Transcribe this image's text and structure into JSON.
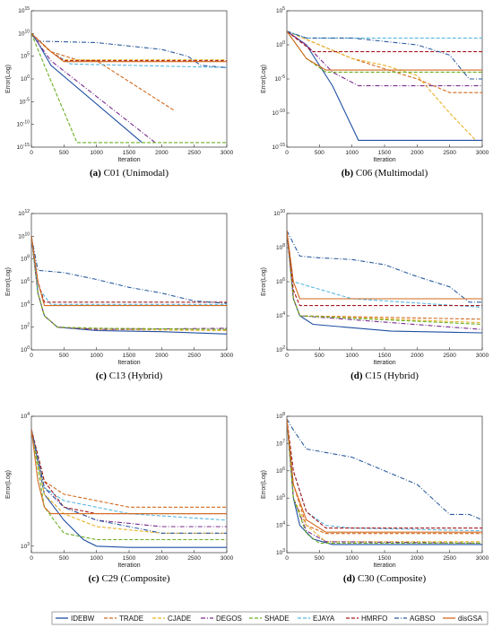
{
  "legend": [
    {
      "name": "IDEBW",
      "color": "#1f4fa3",
      "dash": "solid"
    },
    {
      "name": "TRADE",
      "color": "#d2691e",
      "dash": "dash"
    },
    {
      "name": "CJADE",
      "color": "#e8b32a",
      "dash": "dash"
    },
    {
      "name": "DEGOS",
      "color": "#7b2d8e",
      "dash": "dashdot"
    },
    {
      "name": "SHADE",
      "color": "#6ab023",
      "dash": "dash"
    },
    {
      "name": "EJAYA",
      "color": "#59b8e0",
      "dash": "dash"
    },
    {
      "name": "HMRFO",
      "color": "#a8191e",
      "dash": "dash"
    },
    {
      "name": "AGBSO",
      "color": "#2c5c9e",
      "dash": "dashdot"
    },
    {
      "name": "disGSA",
      "color": "#d26a1e",
      "dash": "solid"
    }
  ],
  "chart_data": [
    {
      "type": "line",
      "panel": "a",
      "caption_tag": "(a)",
      "caption_text": " C01 (Unimodal)",
      "xlabel": "Iteration",
      "ylabel": "Error(Log)",
      "xlim": [
        0,
        3000
      ],
      "xticks": [
        "0",
        "500",
        "1000",
        "1500",
        "2000",
        "2500",
        "3000"
      ],
      "log": true,
      "ylim_exp": [
        -15,
        15
      ],
      "yticks_exp": [
        -15,
        -10,
        -5,
        0,
        5,
        10,
        15
      ],
      "series": [
        {
          "name": "IDEBW",
          "x": [
            0,
            100,
            300,
            1700
          ],
          "y": [
            10,
            8,
            3,
            -14
          ]
        },
        {
          "name": "TRADE",
          "x": [
            0,
            300,
            700,
            1000,
            2200
          ],
          "y": [
            10,
            6,
            4.2,
            4,
            -7
          ]
        },
        {
          "name": "CJADE",
          "x": [
            0,
            250,
            500,
            3000
          ],
          "y": [
            10,
            6.5,
            4.2,
            4.2
          ]
        },
        {
          "name": "DEGOS",
          "x": [
            0,
            100,
            300,
            1900
          ],
          "y": [
            10,
            8,
            4,
            -14
          ]
        },
        {
          "name": "SHADE",
          "x": [
            0,
            200,
            700,
            750,
            3000
          ],
          "y": [
            10,
            3,
            -14,
            -14,
            -14
          ]
        },
        {
          "name": "EJAYA",
          "x": [
            0,
            300,
            600,
            3000
          ],
          "y": [
            10,
            6,
            3.3,
            2.5
          ]
        },
        {
          "name": "HMRFO",
          "x": [
            0,
            300,
            500,
            3000
          ],
          "y": [
            10,
            6,
            4,
            4
          ]
        },
        {
          "name": "AGBSO",
          "x": [
            0,
            100,
            1000,
            2000,
            2400,
            2600,
            3000
          ],
          "y": [
            10,
            8.3,
            8,
            6.5,
            5,
            3,
            2.5
          ]
        },
        {
          "name": "disGSA",
          "x": [
            0,
            300,
            500,
            3000
          ],
          "y": [
            10,
            6,
            3.8,
            3.8
          ]
        }
      ]
    },
    {
      "type": "line",
      "panel": "b",
      "caption_tag": "(b)",
      "caption_text": " C06 (Multimodal)",
      "xlabel": "Iteration",
      "ylabel": "Error(Log)",
      "xlim": [
        0,
        3000
      ],
      "xticks": [
        "0",
        "500",
        "1000",
        "1500",
        "2000",
        "2500",
        "3000"
      ],
      "log": true,
      "ylim_exp": [
        -15,
        5
      ],
      "yticks_exp": [
        -15,
        -10,
        -5,
        0,
        5
      ],
      "series": [
        {
          "name": "IDEBW",
          "x": [
            0,
            300,
            700,
            1100,
            3000
          ],
          "y": [
            2,
            0,
            -6,
            -14,
            -14
          ]
        },
        {
          "name": "TRADE",
          "x": [
            0,
            500,
            1000,
            1500,
            2000,
            2500,
            3000
          ],
          "y": [
            2,
            0,
            -2,
            -3.5,
            -5,
            -7,
            -7
          ]
        },
        {
          "name": "CJADE",
          "x": [
            0,
            500,
            1000,
            1500,
            2000,
            2500,
            2900
          ],
          "y": [
            2,
            0,
            -2,
            -3,
            -4.5,
            -10,
            -14
          ]
        },
        {
          "name": "DEGOS",
          "x": [
            0,
            300,
            700,
            1100,
            3000
          ],
          "y": [
            2,
            0,
            -4,
            -6,
            -6
          ]
        },
        {
          "name": "SHADE",
          "x": [
            0,
            300,
            600,
            3000
          ],
          "y": [
            2,
            -2,
            -4,
            -4
          ]
        },
        {
          "name": "EJAYA",
          "x": [
            0,
            300,
            3000
          ],
          "y": [
            2,
            1,
            1
          ]
        },
        {
          "name": "HMRFO",
          "x": [
            0,
            400,
            3000
          ],
          "y": [
            2,
            -1,
            -1
          ]
        },
        {
          "name": "AGBSO",
          "x": [
            0,
            300,
            1000,
            2000,
            2500,
            2800,
            3000
          ],
          "y": [
            2,
            1,
            1,
            0,
            -1.5,
            -5,
            -5
          ]
        },
        {
          "name": "disGSA",
          "x": [
            0,
            300,
            600,
            3000
          ],
          "y": [
            2,
            -2,
            -3.7,
            -3.7
          ]
        }
      ]
    },
    {
      "type": "line",
      "panel": "c",
      "caption_tag": "(c)",
      "caption_text": " C13 (Hybrid)",
      "xlabel": "Iteration",
      "ylabel": "Error(Log)",
      "xlim": [
        0,
        3000
      ],
      "xticks": [
        "0",
        "500",
        "1000",
        "1500",
        "2000",
        "2500",
        "3000"
      ],
      "log": true,
      "ylim_exp": [
        0,
        12
      ],
      "yticks_exp": [
        0,
        2,
        4,
        6,
        8,
        10,
        12
      ],
      "series": [
        {
          "name": "IDEBW",
          "x": [
            0,
            100,
            200,
            400,
            1000,
            2000,
            3000
          ],
          "y": [
            10,
            5,
            3,
            2,
            1.7,
            1.6,
            1.4
          ]
        },
        {
          "name": "TRADE",
          "x": [
            0,
            100,
            200,
            400,
            1000,
            3000
          ],
          "y": [
            10,
            5,
            3,
            2,
            1.9,
            1.8
          ]
        },
        {
          "name": "CJADE",
          "x": [
            0,
            100,
            200,
            400,
            1000,
            3000
          ],
          "y": [
            10,
            5,
            3,
            2,
            1.8,
            1.7
          ]
        },
        {
          "name": "DEGOS",
          "x": [
            0,
            100,
            200,
            400,
            1000,
            3000
          ],
          "y": [
            10,
            5,
            3,
            2,
            1.8,
            1.9
          ]
        },
        {
          "name": "SHADE",
          "x": [
            0,
            100,
            200,
            400,
            1000,
            3000
          ],
          "y": [
            10,
            5,
            3,
            2,
            1.9,
            1.8
          ]
        },
        {
          "name": "EJAYA",
          "x": [
            0,
            100,
            300,
            3000
          ],
          "y": [
            10,
            5.5,
            4,
            4
          ]
        },
        {
          "name": "HMRFO",
          "x": [
            0,
            100,
            200,
            3000
          ],
          "y": [
            10,
            6,
            4.2,
            4.2
          ]
        },
        {
          "name": "AGBSO",
          "x": [
            0,
            100,
            500,
            1000,
            1500,
            2000,
            2500,
            3000
          ],
          "y": [
            10,
            7,
            6.8,
            6.2,
            5.5,
            5,
            4.3,
            4.1
          ]
        },
        {
          "name": "disGSA",
          "x": [
            0,
            100,
            200,
            3000
          ],
          "y": [
            10,
            6,
            3.9,
            3.9
          ]
        }
      ]
    },
    {
      "type": "line",
      "panel": "d",
      "caption_tag": "(d)",
      "caption_text": " C15 (Hybrid)",
      "xlabel": "Iteration",
      "ylabel": "Error(Log)",
      "xlim": [
        0,
        3000
      ],
      "xticks": [
        "0",
        "500",
        "1000",
        "1500",
        "2000",
        "2500",
        "3000"
      ],
      "log": true,
      "ylim_exp": [
        2,
        10
      ],
      "yticks_exp": [
        2,
        4,
        6,
        8,
        10
      ],
      "series": [
        {
          "name": "IDEBW",
          "x": [
            0,
            100,
            200,
            400,
            1000,
            1600,
            3000
          ],
          "y": [
            9,
            5,
            4,
            3.5,
            3.3,
            3.1,
            3
          ]
        },
        {
          "name": "TRADE",
          "x": [
            0,
            100,
            200,
            3000
          ],
          "y": [
            9,
            5,
            4,
            3.8
          ]
        },
        {
          "name": "CJADE",
          "x": [
            0,
            100,
            200,
            3000
          ],
          "y": [
            9,
            5,
            4,
            3.6
          ]
        },
        {
          "name": "DEGOS",
          "x": [
            0,
            100,
            200,
            3000
          ],
          "y": [
            9,
            5,
            4,
            3.2
          ]
        },
        {
          "name": "SHADE",
          "x": [
            0,
            100,
            200,
            3000
          ],
          "y": [
            9,
            5,
            4,
            3.5
          ]
        },
        {
          "name": "EJAYA",
          "x": [
            0,
            100,
            1000,
            3000
          ],
          "y": [
            9,
            6,
            5,
            4.5
          ]
        },
        {
          "name": "HMRFO",
          "x": [
            0,
            100,
            200,
            3000
          ],
          "y": [
            9,
            5.5,
            4.6,
            4.6
          ]
        },
        {
          "name": "AGBSO",
          "x": [
            0,
            200,
            500,
            1000,
            1500,
            2000,
            2500,
            2800,
            3000
          ],
          "y": [
            9,
            7.5,
            7.4,
            7.3,
            7,
            6.3,
            5.7,
            4.8,
            4.8
          ]
        },
        {
          "name": "disGSA",
          "x": [
            0,
            100,
            200,
            3000
          ],
          "y": [
            9,
            6,
            5,
            5
          ]
        }
      ]
    },
    {
      "type": "line",
      "panel": "e",
      "caption_tag": "(c)",
      "caption_text": " C29 (Composite)",
      "xlabel": "Iteration",
      "ylabel": "Error(Log)",
      "xlim": [
        0,
        3000
      ],
      "xticks": [
        "0",
        "500",
        "1000",
        "1500",
        "2000",
        "2500",
        "3000"
      ],
      "log": true,
      "ylim_exp": [
        2.95,
        4
      ],
      "yticks_exp": [
        3,
        4
      ],
      "series": [
        {
          "name": "IDEBW",
          "x": [
            0,
            200,
            500,
            800,
            1000,
            1500,
            3000
          ],
          "y": [
            3.9,
            3.4,
            3.2,
            3.05,
            3.0,
            2.99,
            2.99
          ]
        },
        {
          "name": "TRADE",
          "x": [
            0,
            200,
            500,
            1000,
            1500,
            3000
          ],
          "y": [
            3.9,
            3.5,
            3.4,
            3.35,
            3.3,
            3.3
          ]
        },
        {
          "name": "CJADE",
          "x": [
            0,
            200,
            500,
            1000,
            2000,
            3000
          ],
          "y": [
            3.9,
            3.4,
            3.25,
            3.15,
            3.1,
            3.1
          ]
        },
        {
          "name": "DEGOS",
          "x": [
            0,
            200,
            500,
            1000,
            2000,
            3000
          ],
          "y": [
            3.9,
            3.45,
            3.3,
            3.2,
            3.15,
            3.15
          ]
        },
        {
          "name": "SHADE",
          "x": [
            0,
            200,
            500,
            1000,
            3000
          ],
          "y": [
            3.9,
            3.3,
            3.1,
            3.05,
            3.05
          ]
        },
        {
          "name": "EJAYA",
          "x": [
            0,
            200,
            500,
            1000,
            1500,
            3000
          ],
          "y": [
            3.9,
            3.45,
            3.35,
            3.3,
            3.25,
            3.2
          ]
        },
        {
          "name": "HMRFO",
          "x": [
            0,
            200,
            500,
            1000,
            3000
          ],
          "y": [
            3.9,
            3.5,
            3.3,
            3.25,
            3.25
          ]
        },
        {
          "name": "AGBSO",
          "x": [
            0,
            200,
            500,
            1000,
            1500,
            2000,
            3000
          ],
          "y": [
            3.9,
            3.45,
            3.3,
            3.2,
            3.15,
            3.1,
            3.1
          ]
        },
        {
          "name": "disGSA",
          "x": [
            0,
            100,
            200,
            300,
            3000
          ],
          "y": [
            3.9,
            3.5,
            3.3,
            3.25,
            3.25
          ]
        }
      ]
    },
    {
      "type": "line",
      "panel": "f",
      "caption_tag": "(d)",
      "caption_text": " C30 (Composite)",
      "xlabel": "Iteration",
      "ylabel": "Error(Log)",
      "xlim": [
        0,
        3000
      ],
      "xticks": [
        "0",
        "500",
        "1000",
        "1500",
        "2000",
        "2500",
        "3000"
      ],
      "log": true,
      "ylim_exp": [
        3,
        8
      ],
      "yticks_exp": [
        3,
        4,
        5,
        6,
        7,
        8
      ],
      "series": [
        {
          "name": "IDEBW",
          "x": [
            0,
            100,
            200,
            400,
            700,
            3000
          ],
          "y": [
            7.9,
            5,
            4,
            3.5,
            3.3,
            3.3
          ]
        },
        {
          "name": "TRADE",
          "x": [
            0,
            100,
            300,
            600,
            3000
          ],
          "y": [
            7.9,
            5.5,
            4,
            3.7,
            3.7
          ]
        },
        {
          "name": "CJADE",
          "x": [
            0,
            100,
            300,
            600,
            3000
          ],
          "y": [
            7.9,
            5,
            4,
            3.4,
            3.4
          ]
        },
        {
          "name": "DEGOS",
          "x": [
            0,
            100,
            300,
            600,
            3000
          ],
          "y": [
            7.9,
            5,
            3.8,
            3.4,
            3.35
          ]
        },
        {
          "name": "SHADE",
          "x": [
            0,
            100,
            300,
            500,
            3000
          ],
          "y": [
            7.9,
            5,
            3.7,
            3.35,
            3.35
          ]
        },
        {
          "name": "EJAYA",
          "x": [
            0,
            100,
            300,
            600,
            1000,
            3000
          ],
          "y": [
            7.9,
            6,
            4.5,
            4,
            3.9,
            3.8
          ]
        },
        {
          "name": "HMRFO",
          "x": [
            0,
            100,
            300,
            600,
            3000
          ],
          "y": [
            7.9,
            6,
            4.5,
            3.9,
            3.9
          ]
        },
        {
          "name": "AGBSO",
          "x": [
            0,
            100,
            300,
            1000,
            1500,
            2000,
            2500,
            2800,
            3000
          ],
          "y": [
            7.9,
            7.5,
            6.8,
            6.5,
            6,
            5.5,
            4.4,
            4.4,
            4.2
          ]
        },
        {
          "name": "disGSA",
          "x": [
            0,
            100,
            300,
            600,
            3000
          ],
          "y": [
            7.9,
            5.5,
            4.2,
            3.75,
            3.75
          ]
        }
      ]
    }
  ]
}
